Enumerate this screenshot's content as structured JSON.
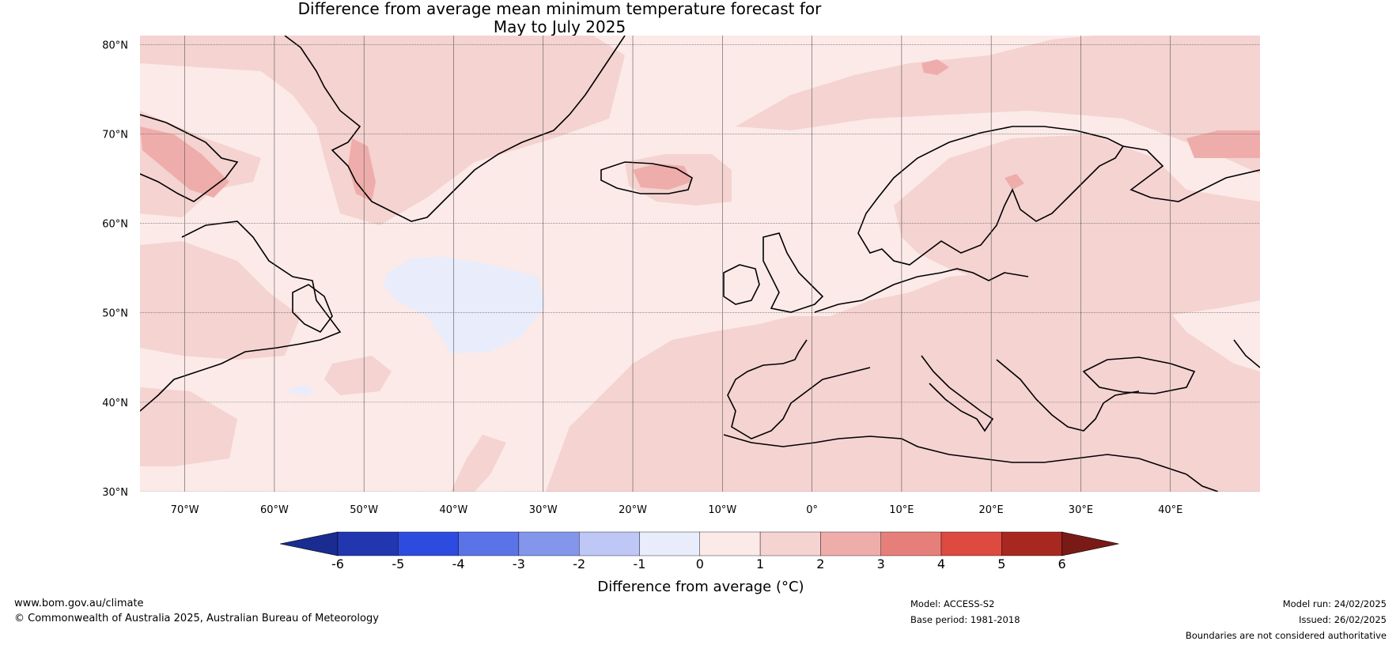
{
  "title": {
    "line1": "Difference from average mean minimum temperature forecast for",
    "line2": "May to July 2025"
  },
  "map": {
    "lat_labels": [
      "80°N",
      "70°N",
      "60°N",
      "50°N",
      "40°N",
      "30°N"
    ],
    "lon_labels": [
      "70°W",
      "60°W",
      "50°W",
      "40°W",
      "30°W",
      "20°W",
      "10°W",
      "0°",
      "10°E",
      "20°E",
      "30°E",
      "40°E"
    ],
    "extent": {
      "lon": [
        -75,
        50
      ],
      "lat": [
        30,
        81
      ]
    },
    "background_color": "#fbeae8",
    "anomaly_colors": {
      "0_to_1": "#fbeae8",
      "1_to_2": "#f4d3d1",
      "2_to_3": "#eeadab",
      "-1_to_0": "#e8ecfb"
    }
  },
  "colorbar": {
    "title": "Difference from average (°C)",
    "tick_labels": [
      "-6",
      "-5",
      "-4",
      "-3",
      "-2",
      "-1",
      "0",
      "1",
      "2",
      "3",
      "4",
      "5",
      "6"
    ],
    "colors": [
      "#1a2c8f",
      "#2236b0",
      "#2e4be0",
      "#5a73e6",
      "#8496ec",
      "#bec7f5",
      "#e8ecfb",
      "#fbeae8",
      "#f4d3d1",
      "#eeadab",
      "#e67f7a",
      "#dd4a40",
      "#a82820",
      "#7a1a16"
    ]
  },
  "footer": {
    "website": "www.bom.gov.au/climate",
    "copyright": "© Commonwealth of Australia 2025, Australian Bureau of Meteorology",
    "model": "Model: ACCESS-S2",
    "base_period": "Base period: 1981-2018",
    "model_run": "Model run: 24/02/2025",
    "issued": "Issued: 26/02/2025",
    "disclaimer": "Boundaries are not considered authoritative"
  }
}
